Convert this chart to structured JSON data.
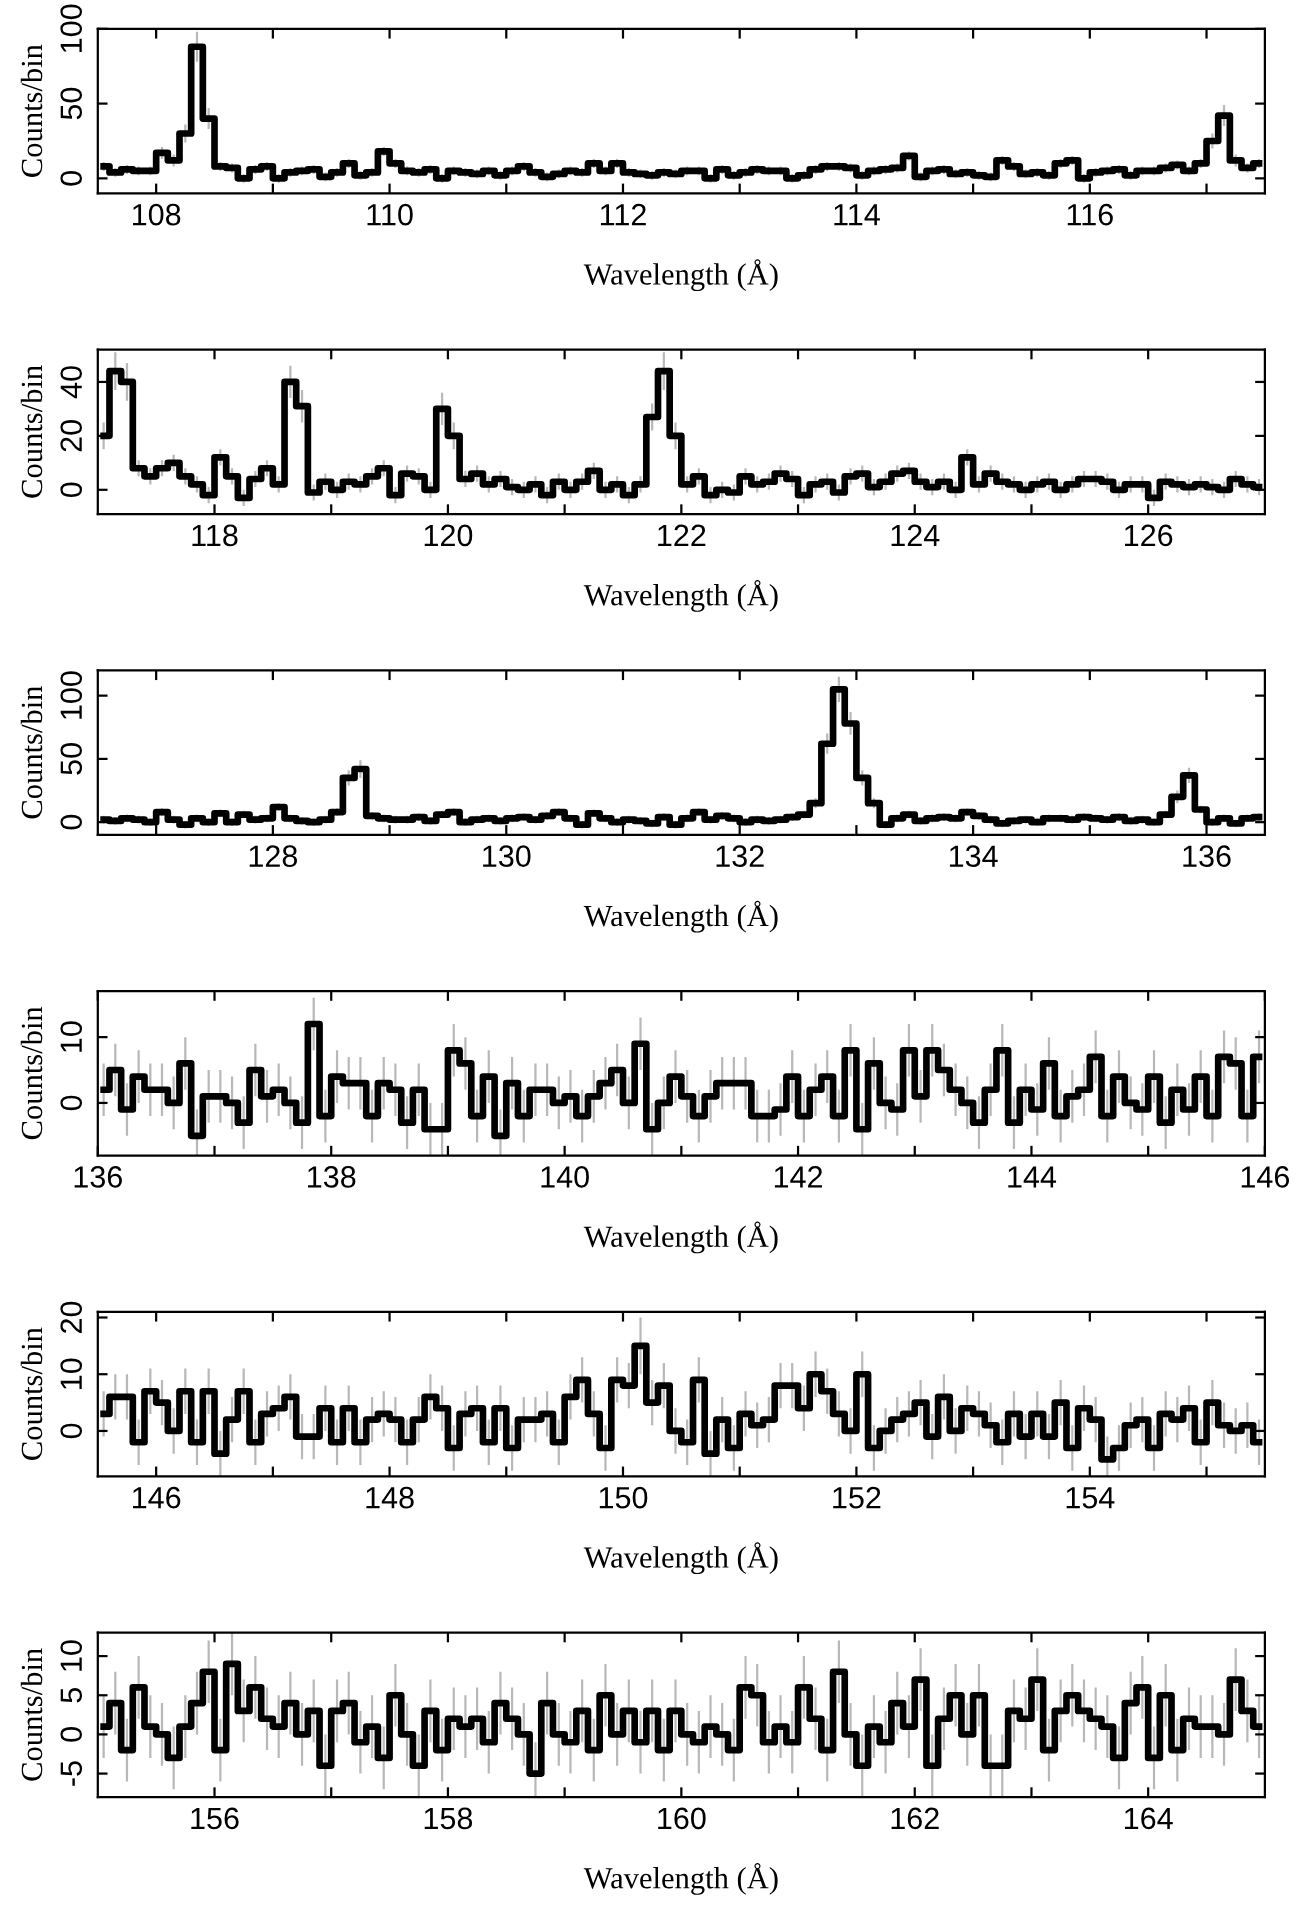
{
  "chart_data": [
    {
      "type": "step",
      "xlabel": "Wavelength (Å)",
      "ylabel": "Counts/bin",
      "xlim": [
        107.5,
        117.5
      ],
      "ylim": [
        -10,
        100
      ],
      "yticks": [
        0,
        50,
        100
      ],
      "xticks": [
        108,
        {
          "value": 109,
          "label": null
        },
        110,
        {
          "value": 111,
          "label": null
        },
        112,
        {
          "value": 113,
          "label": null
        },
        114,
        {
          "value": 115,
          "label": null
        },
        116,
        {
          "value": 117,
          "label": null
        }
      ],
      "x": [
        107.55,
        107.65,
        107.75,
        107.85,
        107.95,
        108.05,
        108.15,
        108.25,
        108.35,
        108.45,
        108.55,
        108.65,
        108.75,
        108.85,
        108.95,
        109.05,
        109.15,
        109.25,
        109.35,
        109.45,
        109.55,
        109.65,
        109.75,
        109.85,
        109.95,
        110.05,
        110.15,
        110.25,
        110.35,
        110.45,
        110.55,
        110.65,
        110.75,
        110.85,
        110.95,
        111.05,
        111.15,
        111.25,
        111.35,
        111.45,
        111.55,
        111.65,
        111.75,
        111.85,
        111.95,
        112.05,
        112.15,
        112.25,
        112.35,
        112.45,
        112.55,
        112.65,
        112.75,
        112.85,
        112.95,
        113.05,
        113.15,
        113.25,
        113.35,
        113.45,
        113.55,
        113.65,
        113.75,
        113.85,
        113.95,
        114.05,
        114.15,
        114.25,
        114.35,
        114.45,
        114.55,
        114.65,
        114.75,
        114.85,
        114.95,
        115.05,
        115.15,
        115.25,
        115.35,
        115.45,
        115.55,
        115.65,
        115.75,
        115.85,
        115.95,
        116.05,
        116.15,
        116.25,
        116.35,
        116.45,
        116.55,
        116.65,
        116.75,
        116.85,
        116.95,
        117.05,
        117.15,
        117.25,
        117.35,
        117.45
      ],
      "series": [
        {
          "color": "#000000",
          "values": [
            8,
            4,
            6,
            5,
            5,
            17,
            12,
            30,
            88,
            40,
            8,
            7,
            0,
            6,
            8,
            0,
            4,
            5,
            6,
            1,
            4,
            10,
            2,
            4,
            18,
            10,
            5,
            4,
            6,
            0,
            5,
            4,
            3,
            5,
            2,
            5,
            8,
            4,
            1,
            3,
            5,
            4,
            10,
            5,
            10,
            4,
            3,
            2,
            4,
            3,
            5,
            5,
            0,
            6,
            2,
            4,
            6,
            5,
            5,
            0,
            2,
            6,
            8,
            8,
            7,
            2,
            5,
            6,
            7,
            15,
            1,
            5,
            6,
            3,
            4,
            2,
            1,
            12,
            8,
            3,
            4,
            2,
            10,
            12,
            0,
            4,
            5,
            6,
            2,
            5,
            5,
            7,
            9,
            5,
            10,
            25,
            42,
            12,
            7,
            10
          ],
          "errors": [
            3,
            3,
            3,
            3,
            3,
            4,
            4,
            6,
            10,
            7,
            3,
            3,
            3,
            3,
            3,
            3,
            3,
            3,
            3,
            3,
            3,
            3,
            3,
            3,
            3,
            3,
            3,
            3,
            3,
            3,
            3,
            3,
            3,
            3,
            3,
            3,
            3,
            3,
            3,
            3,
            3,
            3,
            3,
            3,
            3,
            3,
            3,
            3,
            3,
            3,
            3,
            3,
            3,
            3,
            3,
            3,
            3,
            3,
            3,
            3,
            3,
            3,
            3,
            3,
            3,
            3,
            3,
            3,
            3,
            3,
            3,
            3,
            3,
            3,
            3,
            3,
            3,
            3,
            3,
            3,
            3,
            3,
            3,
            3,
            3,
            3,
            3,
            3,
            3,
            3,
            3,
            3,
            3,
            3,
            3,
            5,
            7,
            4,
            3,
            3
          ]
        }
      ]
    },
    {
      "type": "step",
      "xlabel": "Wavelength (Å)",
      "ylabel": "Counts/bin",
      "xlim": [
        117,
        127
      ],
      "ylim": [
        -9,
        52
      ],
      "yticks": [
        0,
        20,
        40
      ],
      "xticks": [
        118,
        {
          "value": 119,
          "label": null
        },
        120,
        {
          "value": 121,
          "label": null
        },
        122,
        {
          "value": 123,
          "label": null
        },
        124,
        {
          "value": 125,
          "label": null
        },
        126
      ],
      "x": [
        117.05,
        117.15,
        117.25,
        117.35,
        117.45,
        117.55,
        117.65,
        117.75,
        117.85,
        117.95,
        118.05,
        118.15,
        118.25,
        118.35,
        118.45,
        118.55,
        118.65,
        118.75,
        118.85,
        118.95,
        119.05,
        119.15,
        119.25,
        119.35,
        119.45,
        119.55,
        119.65,
        119.75,
        119.85,
        119.95,
        120.05,
        120.15,
        120.25,
        120.35,
        120.45,
        120.55,
        120.65,
        120.75,
        120.85,
        120.95,
        121.05,
        121.15,
        121.25,
        121.35,
        121.45,
        121.55,
        121.65,
        121.75,
        121.85,
        121.95,
        122.05,
        122.15,
        122.25,
        122.35,
        122.45,
        122.55,
        122.65,
        122.75,
        122.85,
        122.95,
        123.05,
        123.15,
        123.25,
        123.35,
        123.45,
        123.55,
        123.65,
        123.75,
        123.85,
        123.95,
        124.05,
        124.15,
        124.25,
        124.35,
        124.45,
        124.55,
        124.65,
        124.75,
        124.85,
        124.95,
        125.05,
        125.15,
        125.25,
        125.35,
        125.45,
        125.55,
        125.65,
        125.75,
        125.85,
        125.95,
        126.05,
        126.15,
        126.25,
        126.35,
        126.45,
        126.55,
        126.65,
        126.75,
        126.85,
        126.95
      ],
      "series": [
        {
          "color": "#000000",
          "values": [
            20,
            44,
            40,
            8,
            5,
            8,
            10,
            5,
            2,
            -2,
            12,
            5,
            -3,
            4,
            8,
            2,
            40,
            31,
            -1,
            3,
            0,
            3,
            2,
            5,
            8,
            -2,
            6,
            5,
            0,
            30,
            20,
            4,
            6,
            2,
            4,
            1,
            0,
            2,
            -2,
            3,
            0,
            3,
            7,
            0,
            2,
            -2,
            2,
            27,
            44,
            20,
            2,
            5,
            -2,
            0,
            -1,
            5,
            2,
            3,
            6,
            4,
            -2,
            2,
            3,
            -1,
            5,
            6,
            1,
            3,
            6,
            7,
            3,
            1,
            3,
            0,
            12,
            2,
            6,
            3,
            2,
            0,
            2,
            3,
            0,
            2,
            4,
            4,
            3,
            0,
            2,
            2,
            -3,
            3,
            2,
            1,
            2,
            1,
            0,
            4,
            2,
            1
          ],
          "errors": [
            5,
            7,
            7,
            3,
            3,
            3,
            3,
            3,
            3,
            3,
            3,
            3,
            3,
            3,
            3,
            3,
            6,
            6,
            3,
            3,
            3,
            3,
            3,
            3,
            3,
            3,
            3,
            3,
            3,
            6,
            5,
            3,
            3,
            3,
            3,
            3,
            3,
            3,
            3,
            3,
            3,
            3,
            3,
            3,
            3,
            3,
            3,
            5,
            7,
            5,
            3,
            3,
            3,
            3,
            3,
            3,
            3,
            3,
            3,
            3,
            3,
            3,
            3,
            3,
            3,
            3,
            3,
            3,
            3,
            3,
            3,
            3,
            3,
            3,
            3,
            3,
            3,
            3,
            3,
            3,
            3,
            3,
            3,
            3,
            3,
            3,
            3,
            3,
            3,
            3,
            3,
            3,
            3,
            3,
            3,
            3,
            3,
            3,
            3,
            3
          ]
        }
      ]
    },
    {
      "type": "step",
      "xlabel": "Wavelength (Å)",
      "ylabel": "Counts/bin",
      "xlim": [
        126.5,
        136.5
      ],
      "ylim": [
        -10,
        120
      ],
      "yticks": [
        0,
        50,
        100
      ],
      "xticks": [
        {
          "value": 127,
          "label": null
        },
        128,
        {
          "value": 129,
          "label": null
        },
        130,
        {
          "value": 131,
          "label": null
        },
        132,
        {
          "value": 133,
          "label": null
        },
        134,
        {
          "value": 135,
          "label": null
        },
        136
      ],
      "x": [
        126.55,
        126.65,
        126.75,
        126.85,
        126.95,
        127.05,
        127.15,
        127.25,
        127.35,
        127.45,
        127.55,
        127.65,
        127.75,
        127.85,
        127.95,
        128.05,
        128.15,
        128.25,
        128.35,
        128.45,
        128.55,
        128.65,
        128.75,
        128.85,
        128.95,
        129.05,
        129.15,
        129.25,
        129.35,
        129.45,
        129.55,
        129.65,
        129.75,
        129.85,
        129.95,
        130.05,
        130.15,
        130.25,
        130.35,
        130.45,
        130.55,
        130.65,
        130.75,
        130.85,
        130.95,
        131.05,
        131.15,
        131.25,
        131.35,
        131.45,
        131.55,
        131.65,
        131.75,
        131.85,
        131.95,
        132.05,
        132.15,
        132.25,
        132.35,
        132.45,
        132.55,
        132.65,
        132.75,
        132.85,
        132.95,
        133.05,
        133.15,
        133.25,
        133.35,
        133.45,
        133.55,
        133.65,
        133.75,
        133.85,
        133.95,
        134.05,
        134.15,
        134.25,
        134.35,
        134.45,
        134.55,
        134.65,
        134.75,
        134.85,
        134.95,
        135.05,
        135.15,
        135.25,
        135.35,
        135.45,
        135.55,
        135.65,
        135.75,
        135.85,
        135.95,
        136.05,
        136.15,
        136.25,
        136.35,
        136.45
      ],
      "series": [
        {
          "color": "#000000",
          "values": [
            2,
            1,
            3,
            2,
            0,
            8,
            2,
            -2,
            3,
            0,
            7,
            0,
            6,
            2,
            3,
            12,
            3,
            1,
            0,
            2,
            8,
            35,
            42,
            5,
            3,
            2,
            2,
            4,
            1,
            6,
            8,
            0,
            2,
            3,
            1,
            3,
            4,
            2,
            5,
            8,
            3,
            -2,
            7,
            3,
            0,
            2,
            1,
            -1,
            4,
            -2,
            3,
            8,
            2,
            5,
            3,
            0,
            2,
            1,
            2,
            4,
            6,
            15,
            62,
            105,
            78,
            35,
            15,
            -2,
            3,
            6,
            1,
            3,
            4,
            3,
            8,
            5,
            2,
            -1,
            1,
            2,
            0,
            3,
            3,
            2,
            4,
            3,
            2,
            4,
            1,
            2,
            0,
            6,
            20,
            37,
            10,
            0,
            3,
            -1,
            3,
            4
          ],
          "errors": [
            3,
            3,
            3,
            3,
            3,
            3,
            3,
            3,
            3,
            3,
            3,
            3,
            3,
            3,
            3,
            3,
            3,
            3,
            3,
            3,
            3,
            6,
            7,
            3,
            3,
            3,
            3,
            3,
            3,
            3,
            3,
            3,
            3,
            3,
            3,
            3,
            3,
            3,
            3,
            3,
            3,
            3,
            3,
            3,
            3,
            3,
            3,
            3,
            3,
            3,
            3,
            3,
            3,
            3,
            3,
            3,
            3,
            3,
            3,
            3,
            3,
            4,
            8,
            10,
            9,
            6,
            4,
            3,
            3,
            3,
            3,
            3,
            3,
            3,
            3,
            3,
            3,
            3,
            3,
            3,
            3,
            3,
            3,
            3,
            3,
            3,
            3,
            3,
            3,
            3,
            3,
            3,
            5,
            6,
            3,
            3,
            3,
            3,
            3,
            3
          ]
        }
      ]
    },
    {
      "type": "step",
      "xlabel": "Wavelength (Å)",
      "ylabel": "Counts/bin",
      "xlim": [
        136,
        146
      ],
      "ylim": [
        -8,
        17
      ],
      "yticks": [
        0,
        10
      ],
      "xticks": [
        136,
        {
          "value": 137,
          "label": null
        },
        138,
        {
          "value": 139,
          "label": null
        },
        140,
        {
          "value": 141,
          "label": null
        },
        142,
        {
          "value": 143,
          "label": null
        },
        144,
        {
          "value": 145,
          "label": null
        },
        146
      ],
      "x": [
        136.05,
        136.15,
        136.25,
        136.35,
        136.45,
        136.55,
        136.65,
        136.75,
        136.85,
        136.95,
        137.05,
        137.15,
        137.25,
        137.35,
        137.45,
        137.55,
        137.65,
        137.75,
        137.85,
        137.95,
        138.05,
        138.15,
        138.25,
        138.35,
        138.45,
        138.55,
        138.65,
        138.75,
        138.85,
        138.95,
        139.05,
        139.15,
        139.25,
        139.35,
        139.45,
        139.55,
        139.65,
        139.75,
        139.85,
        139.95,
        140.05,
        140.15,
        140.25,
        140.35,
        140.45,
        140.55,
        140.65,
        140.75,
        140.85,
        140.95,
        141.05,
        141.15,
        141.25,
        141.35,
        141.45,
        141.55,
        141.65,
        141.75,
        141.85,
        141.95,
        142.05,
        142.15,
        142.25,
        142.35,
        142.45,
        142.55,
        142.65,
        142.75,
        142.85,
        142.95,
        143.05,
        143.15,
        143.25,
        143.35,
        143.45,
        143.55,
        143.65,
        143.75,
        143.85,
        143.95,
        144.05,
        144.15,
        144.25,
        144.35,
        144.45,
        144.55,
        144.65,
        144.75,
        144.85,
        144.95,
        145.05,
        145.15,
        145.25,
        145.35,
        145.45,
        145.55,
        145.65,
        145.75,
        145.85,
        145.95
      ],
      "series": [
        {
          "color": "#000000",
          "values": [
            2,
            5,
            -1,
            4,
            2,
            2,
            0,
            6,
            -5,
            1,
            1,
            0,
            -3,
            5,
            1,
            2,
            0,
            -3,
            12,
            -2,
            4,
            3,
            3,
            -2,
            3,
            2,
            -3,
            2,
            -4,
            -4,
            8,
            6,
            -2,
            4,
            -5,
            3,
            -2,
            2,
            2,
            0,
            1,
            -2,
            1,
            3,
            5,
            0,
            9,
            -4,
            0,
            4,
            1,
            -2,
            1,
            3,
            3,
            3,
            -2,
            -2,
            -1,
            4,
            -2,
            2,
            4,
            -2,
            8,
            -4,
            6,
            0,
            -1,
            8,
            1,
            8,
            5,
            2,
            0,
            -3,
            2,
            8,
            -3,
            2,
            -1,
            6,
            -2,
            1,
            2,
            7,
            -2,
            4,
            0,
            -1,
            4,
            -3,
            2,
            -1,
            4,
            -2,
            7,
            6,
            -2,
            7
          ],
          "errors": [
            4,
            4,
            4,
            4,
            4,
            4,
            4,
            4,
            4,
            4,
            4,
            4,
            4,
            4,
            4,
            4,
            4,
            4,
            4,
            4,
            4,
            4,
            4,
            4,
            4,
            4,
            4,
            4,
            4,
            4,
            4,
            4,
            4,
            4,
            4,
            4,
            4,
            4,
            4,
            4,
            4,
            4,
            4,
            4,
            4,
            4,
            4,
            4,
            4,
            4,
            4,
            4,
            4,
            4,
            4,
            4,
            4,
            4,
            4,
            4,
            4,
            4,
            4,
            4,
            4,
            4,
            4,
            4,
            4,
            4,
            4,
            4,
            4,
            4,
            4,
            4,
            4,
            4,
            4,
            4,
            4,
            4,
            4,
            4,
            4,
            4,
            4,
            4,
            4,
            4,
            4,
            4,
            4,
            4,
            4,
            4,
            4,
            4,
            4,
            4
          ]
        }
      ]
    },
    {
      "type": "step",
      "xlabel": "Wavelength (Å)",
      "ylabel": "Counts/bin",
      "xlim": [
        145.5,
        155.5
      ],
      "ylim": [
        -8,
        21
      ],
      "yticks": [
        0,
        10,
        20
      ],
      "xticks": [
        146,
        {
          "value": 147,
          "label": null
        },
        148,
        {
          "value": 149,
          "label": null
        },
        150,
        {
          "value": 151,
          "label": null
        },
        152,
        {
          "value": 153,
          "label": null
        },
        154,
        {
          "value": 155,
          "label": null
        }
      ],
      "x": [
        145.55,
        145.65,
        145.75,
        145.85,
        145.95,
        146.05,
        146.15,
        146.25,
        146.35,
        146.45,
        146.55,
        146.65,
        146.75,
        146.85,
        146.95,
        147.05,
        147.15,
        147.25,
        147.35,
        147.45,
        147.55,
        147.65,
        147.75,
        147.85,
        147.95,
        148.05,
        148.15,
        148.25,
        148.35,
        148.45,
        148.55,
        148.65,
        148.75,
        148.85,
        148.95,
        149.05,
        149.15,
        149.25,
        149.35,
        149.45,
        149.55,
        149.65,
        149.75,
        149.85,
        149.95,
        150.05,
        150.15,
        150.25,
        150.35,
        150.45,
        150.55,
        150.65,
        150.75,
        150.85,
        150.95,
        151.05,
        151.15,
        151.25,
        151.35,
        151.45,
        151.55,
        151.65,
        151.75,
        151.85,
        151.95,
        152.05,
        152.15,
        152.25,
        152.35,
        152.45,
        152.55,
        152.65,
        152.75,
        152.85,
        152.95,
        153.05,
        153.15,
        153.25,
        153.35,
        153.45,
        153.55,
        153.65,
        153.75,
        153.85,
        153.95,
        154.05,
        154.15,
        154.25,
        154.35,
        154.45,
        154.55,
        154.65,
        154.75,
        154.85,
        154.95,
        155.05,
        155.15,
        155.25,
        155.35,
        155.45
      ],
      "series": [
        {
          "color": "#000000",
          "values": [
            3,
            6,
            6,
            -2,
            7,
            5,
            0,
            7,
            -2,
            7,
            -4,
            2,
            7,
            -2,
            3,
            4,
            6,
            -1,
            -1,
            4,
            -2,
            4,
            -2,
            2,
            3,
            2,
            -2,
            2,
            6,
            4,
            -3,
            3,
            4,
            -2,
            4,
            -3,
            2,
            2,
            3,
            -2,
            6,
            9,
            3,
            -3,
            9,
            8,
            15,
            5,
            8,
            0,
            -2,
            9,
            -4,
            2,
            -3,
            3,
            1,
            2,
            8,
            8,
            4,
            10,
            7,
            3,
            0,
            10,
            -3,
            0,
            2,
            3,
            5,
            -1,
            6,
            0,
            4,
            3,
            1,
            -2,
            3,
            -1,
            3,
            -1,
            5,
            -3,
            4,
            2,
            -5,
            -3,
            1,
            2,
            -3,
            3,
            2,
            4,
            -2,
            5,
            1,
            0,
            1,
            -2
          ],
          "errors": [
            4,
            4,
            4,
            4,
            4,
            4,
            4,
            4,
            4,
            4,
            4,
            4,
            4,
            4,
            4,
            4,
            4,
            4,
            4,
            4,
            4,
            4,
            4,
            4,
            4,
            4,
            4,
            4,
            4,
            4,
            4,
            4,
            4,
            4,
            4,
            4,
            4,
            4,
            4,
            4,
            4,
            4,
            4,
            4,
            4,
            4,
            5,
            4,
            4,
            4,
            4,
            4,
            4,
            4,
            4,
            4,
            4,
            4,
            4,
            4,
            4,
            4,
            4,
            4,
            4,
            4,
            4,
            4,
            4,
            4,
            4,
            4,
            4,
            4,
            4,
            4,
            4,
            4,
            4,
            4,
            4,
            4,
            4,
            4,
            4,
            4,
            4,
            4,
            4,
            4,
            4,
            4,
            4,
            4,
            4,
            4,
            4,
            4,
            4,
            4
          ]
        }
      ]
    },
    {
      "type": "step",
      "xlabel": "Wavelength (Å)",
      "ylabel": "Counts/bin",
      "xlim": [
        155,
        165
      ],
      "ylim": [
        -8,
        13
      ],
      "yticks": [
        -5,
        0,
        5,
        10
      ],
      "xticks": [
        156,
        {
          "value": 157,
          "label": null
        },
        158,
        {
          "value": 159,
          "label": null
        },
        160,
        {
          "value": 161,
          "label": null
        },
        162,
        {
          "value": 163,
          "label": null
        },
        164
      ],
      "x": [
        155.05,
        155.15,
        155.25,
        155.35,
        155.45,
        155.55,
        155.65,
        155.75,
        155.85,
        155.95,
        156.05,
        156.15,
        156.25,
        156.35,
        156.45,
        156.55,
        156.65,
        156.75,
        156.85,
        156.95,
        157.05,
        157.15,
        157.25,
        157.35,
        157.45,
        157.55,
        157.65,
        157.75,
        157.85,
        157.95,
        158.05,
        158.15,
        158.25,
        158.35,
        158.45,
        158.55,
        158.65,
        158.75,
        158.85,
        158.95,
        159.05,
        159.15,
        159.25,
        159.35,
        159.45,
        159.55,
        159.65,
        159.75,
        159.85,
        159.95,
        160.05,
        160.15,
        160.25,
        160.35,
        160.45,
        160.55,
        160.65,
        160.75,
        160.85,
        160.95,
        161.05,
        161.15,
        161.25,
        161.35,
        161.45,
        161.55,
        161.65,
        161.75,
        161.85,
        161.95,
        162.05,
        162.15,
        162.25,
        162.35,
        162.45,
        162.55,
        162.65,
        162.75,
        162.85,
        162.95,
        163.05,
        163.15,
        163.25,
        163.35,
        163.45,
        163.55,
        163.65,
        163.75,
        163.85,
        163.95,
        164.05,
        164.15,
        164.25,
        164.35,
        164.45,
        164.55,
        164.65,
        164.75,
        164.85,
        164.95
      ],
      "series": [
        {
          "color": "#000000",
          "values": [
            1,
            4,
            -2,
            6,
            1,
            0,
            -3,
            1,
            4,
            8,
            -2,
            9,
            3,
            6,
            2,
            1,
            4,
            0,
            3,
            -4,
            3,
            4,
            -1,
            1,
            -3,
            5,
            0,
            -4,
            3,
            -2,
            2,
            1,
            2,
            -1,
            4,
            2,
            0,
            -5,
            4,
            0,
            -1,
            3,
            -2,
            5,
            0,
            3,
            -1,
            3,
            -2,
            3,
            0,
            -1,
            1,
            0,
            -2,
            6,
            5,
            -1,
            1,
            -1,
            6,
            2,
            -2,
            8,
            0,
            -4,
            1,
            -1,
            4,
            1,
            7,
            -4,
            2,
            5,
            0,
            5,
            -4,
            -4,
            3,
            2,
            7,
            -2,
            3,
            5,
            3,
            2,
            1,
            -3,
            4,
            6,
            -3,
            5,
            -2,
            2,
            1,
            1,
            0,
            7,
            3,
            1
          ],
          "errors": [
            4,
            4,
            4,
            4,
            4,
            4,
            4,
            4,
            4,
            4,
            4,
            4,
            4,
            4,
            4,
            4,
            4,
            4,
            4,
            4,
            4,
            4,
            4,
            4,
            4,
            4,
            4,
            4,
            4,
            4,
            4,
            4,
            4,
            4,
            4,
            4,
            4,
            4,
            4,
            4,
            4,
            4,
            4,
            4,
            4,
            4,
            4,
            4,
            4,
            4,
            4,
            4,
            4,
            4,
            4,
            4,
            4,
            4,
            4,
            4,
            4,
            4,
            4,
            4,
            4,
            4,
            4,
            4,
            4,
            4,
            4,
            4,
            4,
            4,
            4,
            4,
            4,
            4,
            4,
            4,
            4,
            4,
            4,
            4,
            4,
            4,
            4,
            4,
            4,
            4,
            4,
            4,
            4,
            4,
            4,
            4,
            4,
            4,
            4,
            4
          ]
        }
      ]
    }
  ]
}
